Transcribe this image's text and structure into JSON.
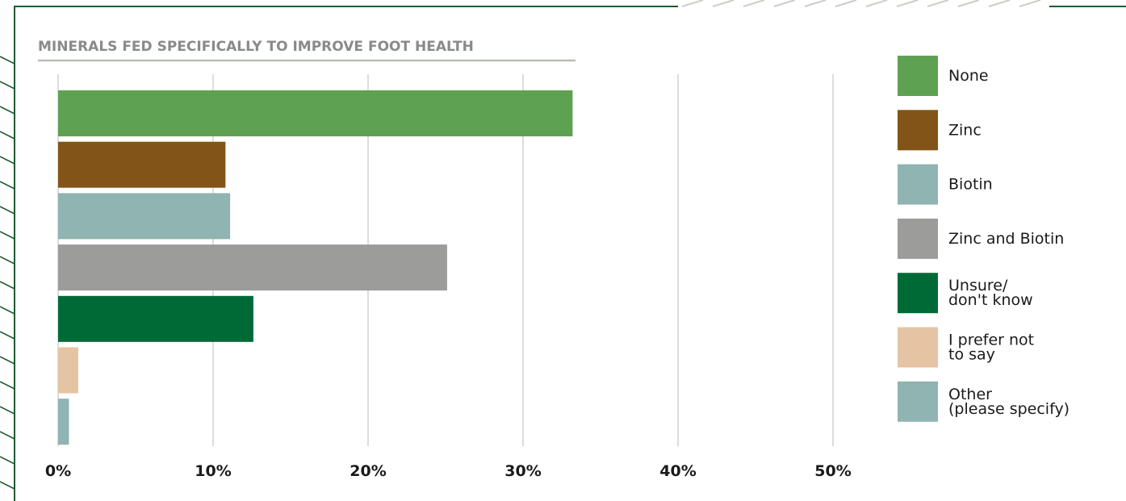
{
  "colors": {
    "frame": "#1f5a32",
    "title_underline": "#b8beb6",
    "grid": "#dcdcdc",
    "hatch": "#1f5a32"
  },
  "chart_data": {
    "type": "bar",
    "orientation": "horizontal",
    "title": "MINERALS FED SPECIFICALLY TO IMPROVE FOOT HEALTH",
    "xlabel": "",
    "ylabel": "",
    "xlim": [
      0,
      50
    ],
    "grid": true,
    "legend_position": "right",
    "ticks": [
      "0%",
      "10%",
      "20%",
      "30%",
      "40%",
      "50%"
    ],
    "tick_values": [
      0,
      10,
      20,
      30,
      40,
      50
    ],
    "series": [
      {
        "name": "None",
        "value": 33.2,
        "color": "#5fa152",
        "legend_lines": [
          "None"
        ]
      },
      {
        "name": "Zinc",
        "value": 10.8,
        "color": "#825417",
        "legend_lines": [
          "Zinc"
        ]
      },
      {
        "name": "Biotin",
        "value": 11.1,
        "color": "#8fb4b1",
        "legend_lines": [
          "Biotin"
        ]
      },
      {
        "name": "Zinc and Biotin",
        "value": 25.1,
        "color": "#9c9c9a",
        "legend_lines": [
          "Zinc and Biotin"
        ]
      },
      {
        "name": "Unsure/ don't know",
        "value": 12.6,
        "color": "#006a37",
        "legend_lines": [
          "Unsure/",
          "don't know"
        ]
      },
      {
        "name": "I prefer not to say",
        "value": 1.3,
        "color": "#e5c4a3",
        "legend_lines": [
          "I prefer not",
          "to say"
        ]
      },
      {
        "name": "Other (please specify)",
        "value": 0.7,
        "color": "#8fb4b1",
        "legend_lines": [
          "Other",
          "(please specify)"
        ]
      }
    ]
  }
}
